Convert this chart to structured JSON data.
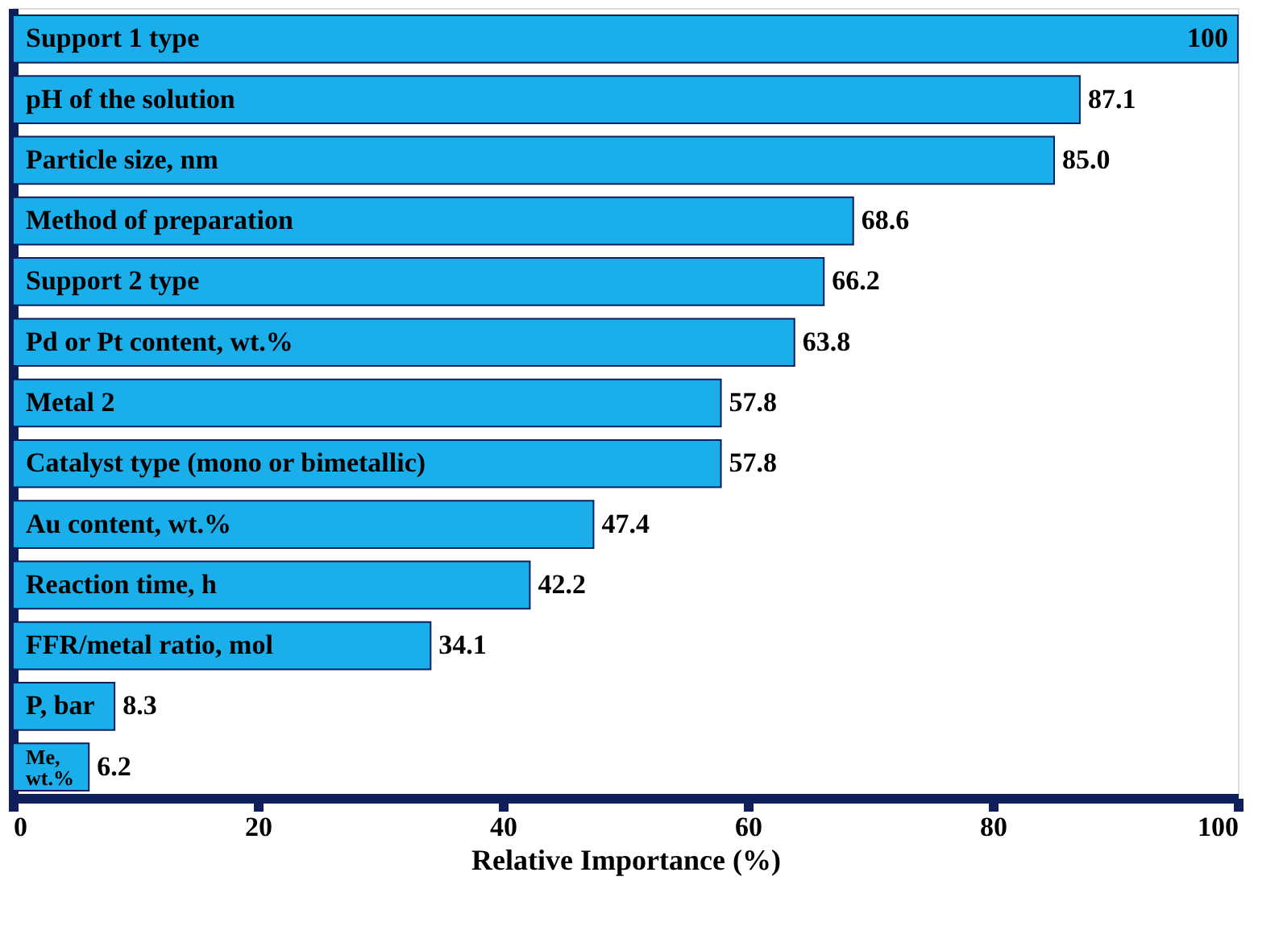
{
  "chart_data": {
    "type": "bar",
    "orientation": "horizontal",
    "xlabel": "Relative Importance (%)",
    "categories": [
      "Support 1 type",
      "pH of the solution",
      "Particle size, nm",
      "Method of preparation",
      "Support 2 type",
      "Pd or Pt content, wt.%",
      "Metal 2",
      "Catalyst type (mono or bimetallic)",
      "Au content, wt.%",
      "Reaction time, h",
      "FFR/metal ratio, mol",
      "P, bar",
      "Me, wt.%"
    ],
    "values": [
      100,
      87.1,
      85.0,
      68.6,
      66.2,
      63.8,
      57.8,
      57.8,
      47.4,
      42.2,
      34.1,
      8.3,
      6.2
    ],
    "value_labels": [
      "100",
      "87.1",
      "85.0",
      "68.6",
      "66.2",
      "63.8",
      "57.8",
      "57.8",
      "47.4",
      "42.2",
      "34.1",
      "8.3",
      "6.2"
    ],
    "color": "#1aaeeb",
    "xlim": [
      0,
      100
    ],
    "xticks": [
      0,
      20,
      40,
      60,
      80,
      100
    ],
    "tick_labels": "x",
    "grid": false
  }
}
